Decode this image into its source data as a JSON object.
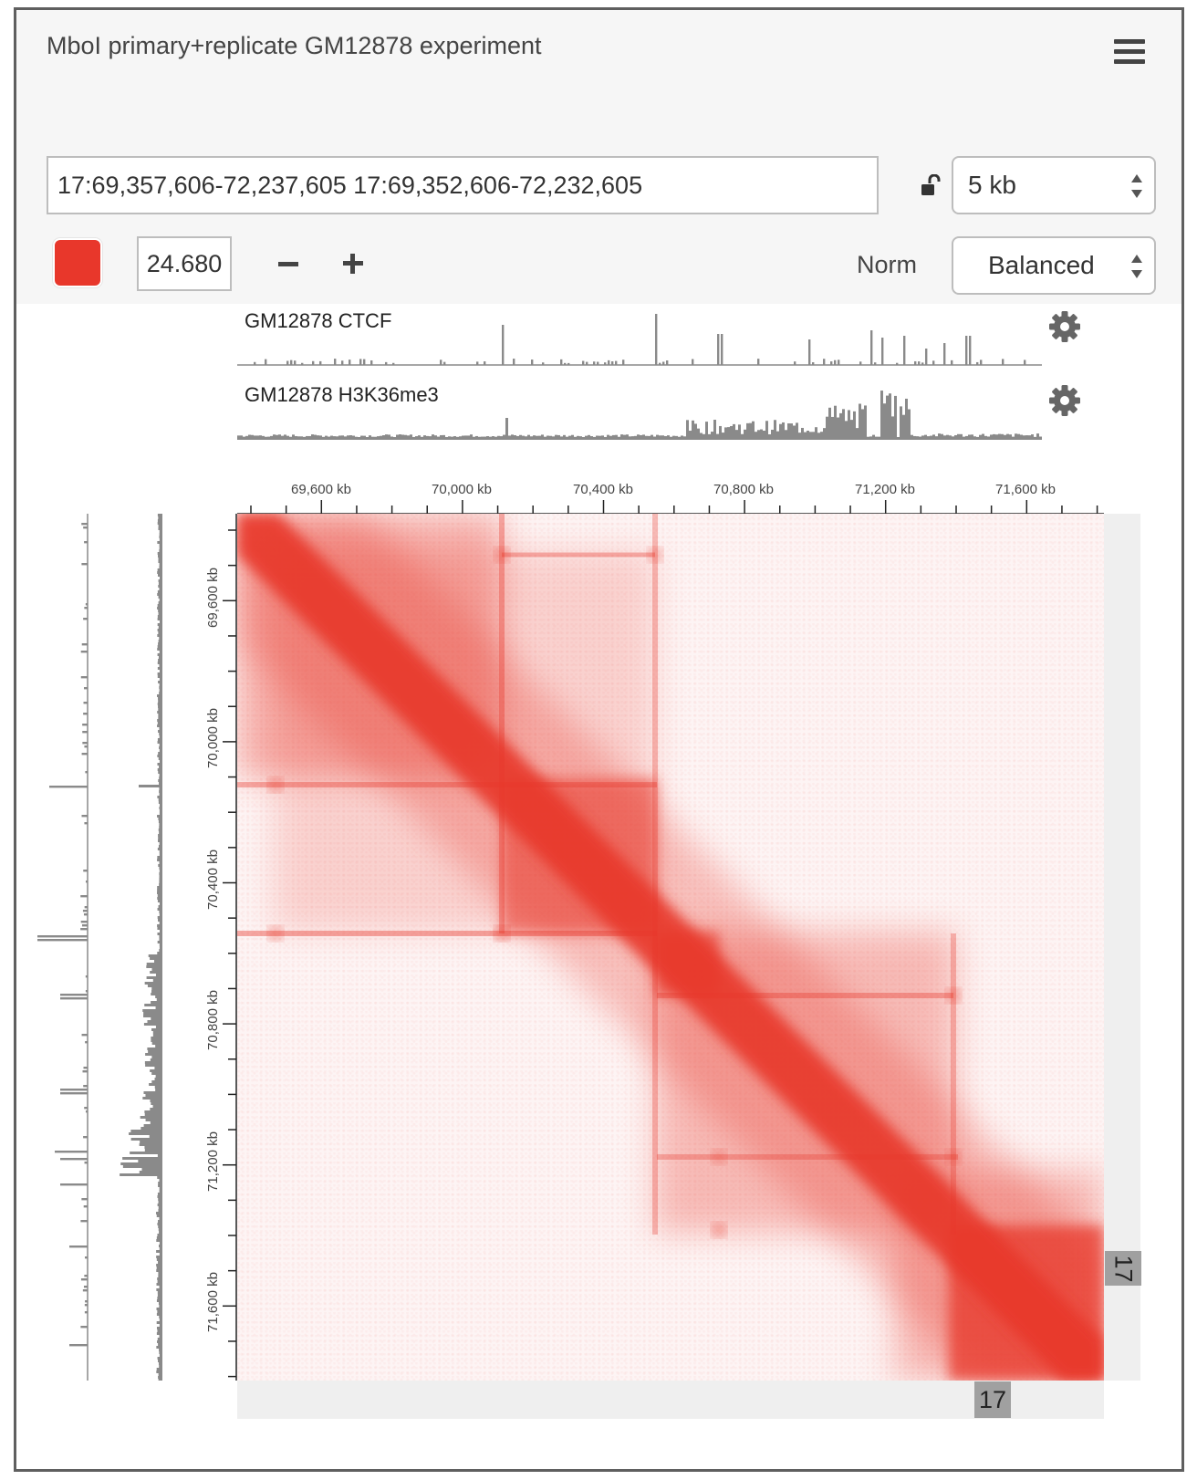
{
  "header": {
    "title": "MboI primary+replicate GM12878 experiment",
    "menu_icon": "hamburger-menu-icon"
  },
  "locus": {
    "value": "17:69,357,606-72,237,605 17:69,352,606-72,232,605",
    "lock_icon": "unlocked-padlock-icon"
  },
  "resolution": {
    "selected": "5 kb"
  },
  "color_scale": {
    "color": "#e8372b",
    "max_value": "24.680",
    "minus_label": "−",
    "plus_label": "+"
  },
  "normalization": {
    "label": "Norm",
    "selected": "Balanced"
  },
  "tracks": [
    {
      "name": "GM12878 CTCF",
      "settings_icon": "gear-icon"
    },
    {
      "name": "GM12878 H3K36me3",
      "settings_icon": "gear-icon"
    }
  ],
  "axes": {
    "x_tick_labels": [
      "69,600 kb",
      "70,000 kb",
      "70,400 kb",
      "70,800 kb",
      "71,200 kb",
      "71,600 kb"
    ],
    "y_tick_labels": [
      "69,600 kb",
      "70,000 kb",
      "70,400 kb",
      "70,800 kb",
      "71,200 kb",
      "71,600 kb"
    ]
  },
  "chromosome": {
    "x_label": "17",
    "y_label": "17"
  }
}
